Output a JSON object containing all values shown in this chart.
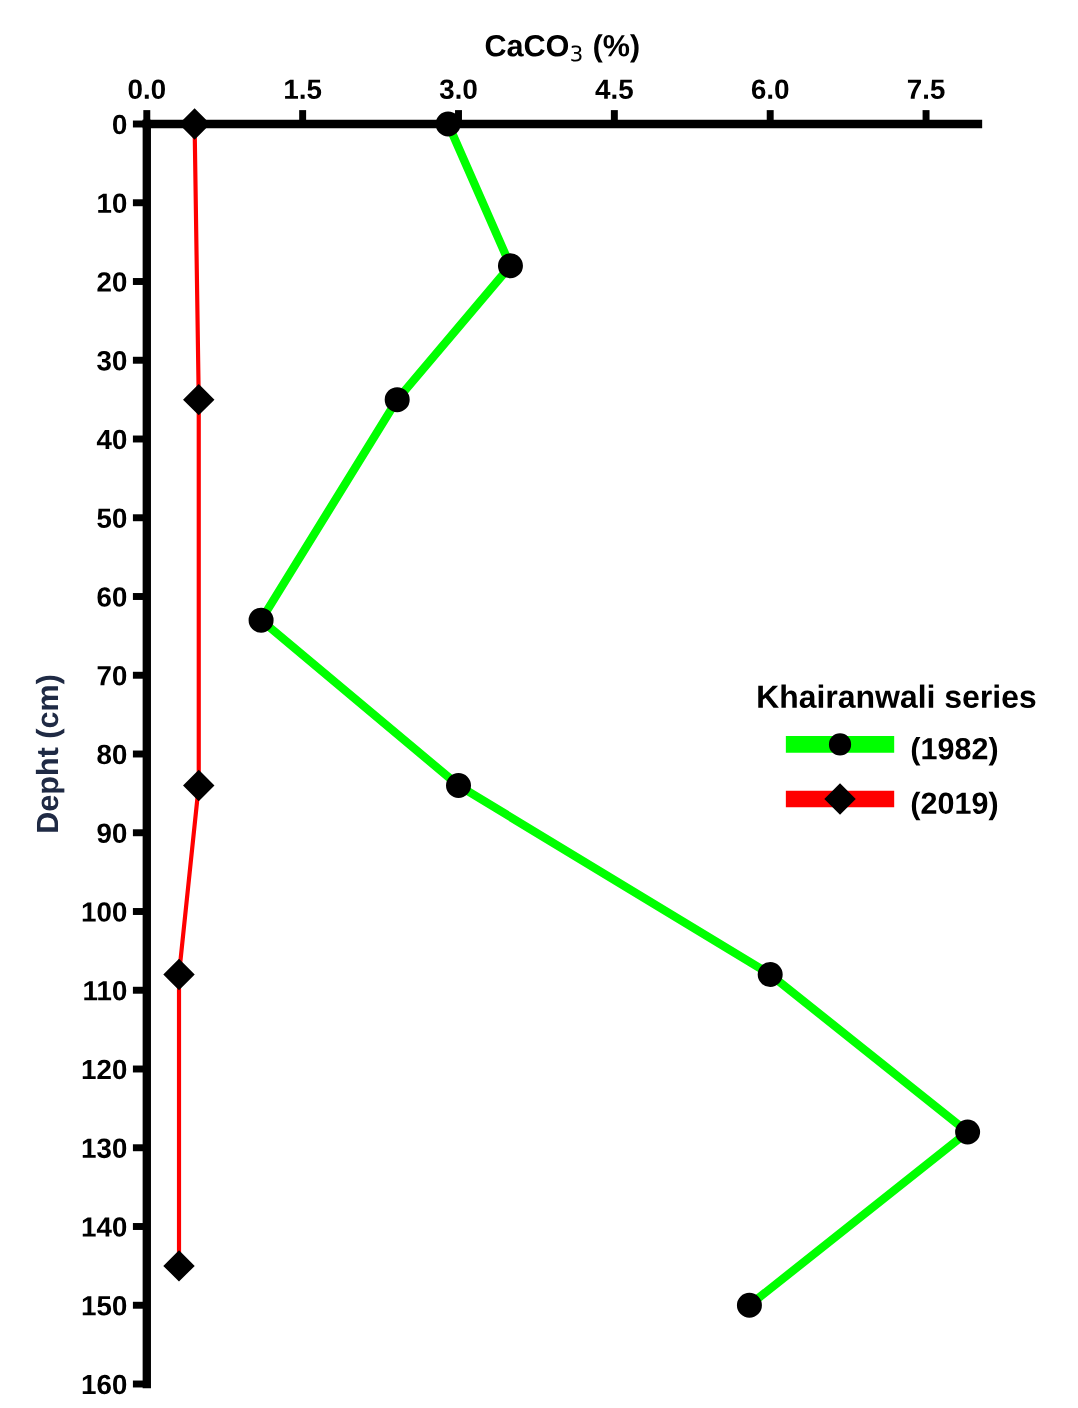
{
  "chart_data": {
    "type": "line",
    "xlabel": "CaCO$_{3}$ (%)",
    "ylabel": "Depht (cm)",
    "legend_title": "Khairanwali series",
    "legend": "right",
    "grid": false,
    "xlim": [
      0,
      8
    ],
    "xticks": [
      {
        "value": 0,
        "label": "0.0"
      },
      1.5,
      {
        "value": 3,
        "label": "3.0"
      },
      4.5,
      {
        "value": 6,
        "label": "6.0"
      },
      7.5
    ],
    "ylim": [
      160,
      0
    ],
    "yticks": [
      0,
      10,
      20,
      30,
      40,
      50,
      60,
      70,
      80,
      90,
      100,
      110,
      120,
      130,
      140,
      150,
      160
    ],
    "series": [
      {
        "name": "(1982)",
        "color": "#00ff00",
        "marker": "circle",
        "x": [
          2.9,
          3.5,
          2.41,
          1.1,
          3.0,
          6.0,
          7.9,
          5.8
        ],
        "values": [
          0,
          18,
          35,
          63,
          84,
          108,
          128,
          150
        ]
      },
      {
        "name": "(2019)",
        "color": "#ff0000",
        "marker": "diamond",
        "x": [
          0.46,
          0.5,
          0.5,
          0.31,
          0.31
        ],
        "values": [
          0,
          35,
          84,
          108,
          145
        ]
      }
    ]
  }
}
